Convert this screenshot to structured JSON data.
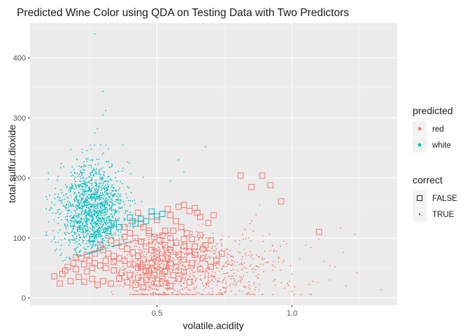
{
  "chart_data": {
    "type": "scatter",
    "title": "Predicted Wine Color using QDA on Testing Data with Two Predictors",
    "xlabel": "volatile.acidity",
    "ylabel": "total.sulfur.dioxide",
    "xlim": [
      0.03,
      1.39
    ],
    "ylim": [
      -12,
      458
    ],
    "x_ticks": [
      0.5,
      1.0
    ],
    "x_tick_labels": [
      "0.5",
      "1.0"
    ],
    "y_ticks": [
      0,
      100,
      200,
      300,
      400
    ],
    "y_tick_labels": [
      "0",
      "100",
      "200",
      "300",
      "400"
    ],
    "grid": true,
    "legend_position": "right",
    "legends": [
      {
        "title": "predicted",
        "entries": [
          {
            "label": "red",
            "color": "#F8766D"
          },
          {
            "label": "white",
            "color": "#00BFC4"
          }
        ]
      },
      {
        "title": "correct",
        "entries": [
          {
            "label": "FALSE",
            "shape": "open-square"
          },
          {
            "label": "TRUE",
            "shape": "small-point"
          }
        ]
      }
    ],
    "colors": {
      "red": "#F8766D",
      "white": "#00BFC4"
    },
    "series": [
      {
        "name": "red / FALSE",
        "color": "#F8766D",
        "shape": "open-square",
        "points": [
          [
            0.81,
            204
          ],
          [
            0.85,
            185
          ],
          [
            0.89,
            204
          ],
          [
            0.92,
            188
          ],
          [
            0.96,
            161
          ],
          [
            1.1,
            110
          ],
          [
            0.58,
            152
          ],
          [
            0.6,
            155
          ],
          [
            0.62,
            145
          ],
          [
            0.64,
            150
          ],
          [
            0.66,
            135
          ],
          [
            0.69,
            125
          ],
          [
            0.7,
            96
          ],
          [
            0.55,
            138
          ],
          [
            0.57,
            128
          ],
          [
            0.59,
            118
          ],
          [
            0.61,
            108
          ],
          [
            0.63,
            98
          ],
          [
            0.66,
            105
          ],
          [
            0.68,
            88
          ],
          [
            0.72,
            62
          ],
          [
            0.5,
            130
          ],
          [
            0.53,
            112
          ],
          [
            0.55,
            100
          ],
          [
            0.57,
            92
          ],
          [
            0.6,
            86
          ],
          [
            0.62,
            78
          ],
          [
            0.64,
            72
          ],
          [
            0.67,
            66
          ],
          [
            0.7,
            52
          ],
          [
            0.45,
            118
          ],
          [
            0.47,
            108
          ],
          [
            0.49,
            102
          ],
          [
            0.51,
            96
          ],
          [
            0.53,
            88
          ],
          [
            0.55,
            80
          ],
          [
            0.58,
            72
          ],
          [
            0.6,
            64
          ],
          [
            0.63,
            58
          ],
          [
            0.66,
            48
          ],
          [
            0.4,
            108
          ],
          [
            0.42,
            100
          ],
          [
            0.44,
            94
          ],
          [
            0.46,
            86
          ],
          [
            0.48,
            80
          ],
          [
            0.5,
            74
          ],
          [
            0.52,
            66
          ],
          [
            0.55,
            58
          ],
          [
            0.57,
            52
          ],
          [
            0.6,
            44
          ],
          [
            0.35,
            92
          ],
          [
            0.37,
            86
          ],
          [
            0.39,
            82
          ],
          [
            0.41,
            76
          ],
          [
            0.43,
            70
          ],
          [
            0.45,
            64
          ],
          [
            0.48,
            58
          ],
          [
            0.5,
            52
          ],
          [
            0.53,
            44
          ],
          [
            0.56,
            38
          ],
          [
            0.3,
            80
          ],
          [
            0.32,
            74
          ],
          [
            0.34,
            70
          ],
          [
            0.36,
            66
          ],
          [
            0.38,
            62
          ],
          [
            0.4,
            56
          ],
          [
            0.43,
            50
          ],
          [
            0.46,
            44
          ],
          [
            0.49,
            38
          ],
          [
            0.52,
            32
          ],
          [
            0.22,
            66
          ],
          [
            0.25,
            62
          ],
          [
            0.27,
            58
          ],
          [
            0.29,
            54
          ],
          [
            0.31,
            50
          ],
          [
            0.34,
            46
          ],
          [
            0.37,
            42
          ],
          [
            0.4,
            38
          ],
          [
            0.43,
            34
          ],
          [
            0.46,
            30
          ],
          [
            0.15,
            40
          ],
          [
            0.17,
            52
          ],
          [
            0.19,
            58
          ],
          [
            0.2,
            48
          ],
          [
            0.21,
            35
          ],
          [
            0.23,
            27
          ],
          [
            0.26,
            32
          ],
          [
            0.28,
            22
          ],
          [
            0.3,
            28
          ],
          [
            0.33,
            24
          ],
          [
            0.14,
            24
          ],
          [
            0.18,
            28
          ],
          [
            0.24,
            44
          ],
          [
            0.36,
            32
          ],
          [
            0.39,
            26
          ],
          [
            0.42,
            22
          ],
          [
            0.45,
            18
          ],
          [
            0.5,
            24
          ],
          [
            0.55,
            20
          ],
          [
            0.62,
            26
          ],
          [
            0.12,
            36
          ],
          [
            0.16,
            46
          ],
          [
            0.2,
            68
          ],
          [
            0.24,
            72
          ],
          [
            0.26,
            50
          ],
          [
            0.31,
            62
          ],
          [
            0.34,
            60
          ],
          [
            0.44,
            52
          ],
          [
            0.47,
            46
          ],
          [
            0.58,
            32
          ],
          [
            0.38,
            118
          ],
          [
            0.41,
            128
          ],
          [
            0.44,
            124
          ],
          [
            0.47,
            112
          ],
          [
            0.52,
            104
          ],
          [
            0.56,
            112
          ],
          [
            0.6,
            98
          ],
          [
            0.64,
            86
          ],
          [
            0.67,
            82
          ],
          [
            0.74,
            74
          ],
          [
            0.65,
            142
          ],
          [
            0.71,
            138
          ],
          [
            0.54,
            148
          ],
          [
            0.48,
            136
          ],
          [
            0.43,
            142
          ],
          [
            0.38,
            102
          ],
          [
            0.33,
            96
          ],
          [
            0.29,
            88
          ],
          [
            0.27,
            74
          ],
          [
            0.23,
            56
          ]
        ]
      },
      {
        "name": "white / FALSE",
        "color": "#00BFC4",
        "shape": "open-square",
        "points": [
          [
            0.52,
            140
          ],
          [
            0.48,
            144
          ],
          [
            0.44,
            132
          ],
          [
            0.4,
            134
          ],
          [
            0.36,
            118
          ],
          [
            0.32,
            112
          ],
          [
            0.28,
            106
          ],
          [
            0.26,
            98
          ],
          [
            0.42,
            124
          ],
          [
            0.46,
            128
          ],
          [
            0.5,
            136
          ],
          [
            0.34,
            124
          ]
        ]
      }
    ],
    "dense_clusters": [
      {
        "name": "white / TRUE",
        "color": "#00BFC4",
        "shape": "small-point",
        "count": 1450,
        "x_center": 0.26,
        "x_spread": 0.06,
        "y_center": 145,
        "y_spread": 40,
        "x_range": [
          0.09,
          0.71
        ],
        "y_range": [
          55,
          440
        ]
      },
      {
        "name": "red / TRUE",
        "color": "#F8766D",
        "shape": "small-point",
        "count": 1200,
        "x_center": 0.55,
        "x_spread": 0.17,
        "y_center": 48,
        "y_spread": 32,
        "x_range": [
          0.12,
          1.34
        ],
        "y_range": [
          6,
          170
        ]
      }
    ],
    "notable_points": [
      {
        "name": "white / TRUE",
        "color": "#00BFC4",
        "points": [
          [
            0.27,
            440
          ],
          [
            0.3,
            344
          ],
          [
            0.31,
            312
          ],
          [
            0.3,
            305
          ],
          [
            0.28,
            282
          ],
          [
            0.27,
            275
          ],
          [
            0.68,
            252
          ],
          [
            0.6,
            210
          ],
          [
            0.58,
            230
          ],
          [
            0.55,
            195
          ]
        ]
      },
      {
        "name": "red / TRUE",
        "color": "#F8766D",
        "points": [
          [
            1.33,
            14
          ],
          [
            1.24,
            42
          ],
          [
            1.16,
            52
          ],
          [
            1.05,
            88
          ],
          [
            1.07,
            84
          ],
          [
            1.1,
            98
          ],
          [
            0.88,
            155
          ],
          [
            0.84,
            100
          ],
          [
            0.82,
            98
          ],
          [
            0.95,
            60
          ],
          [
            1.0,
            40
          ],
          [
            1.14,
            30
          ],
          [
            1.2,
            20
          ],
          [
            0.98,
            90
          ],
          [
            0.9,
            78
          ]
        ]
      }
    ]
  }
}
